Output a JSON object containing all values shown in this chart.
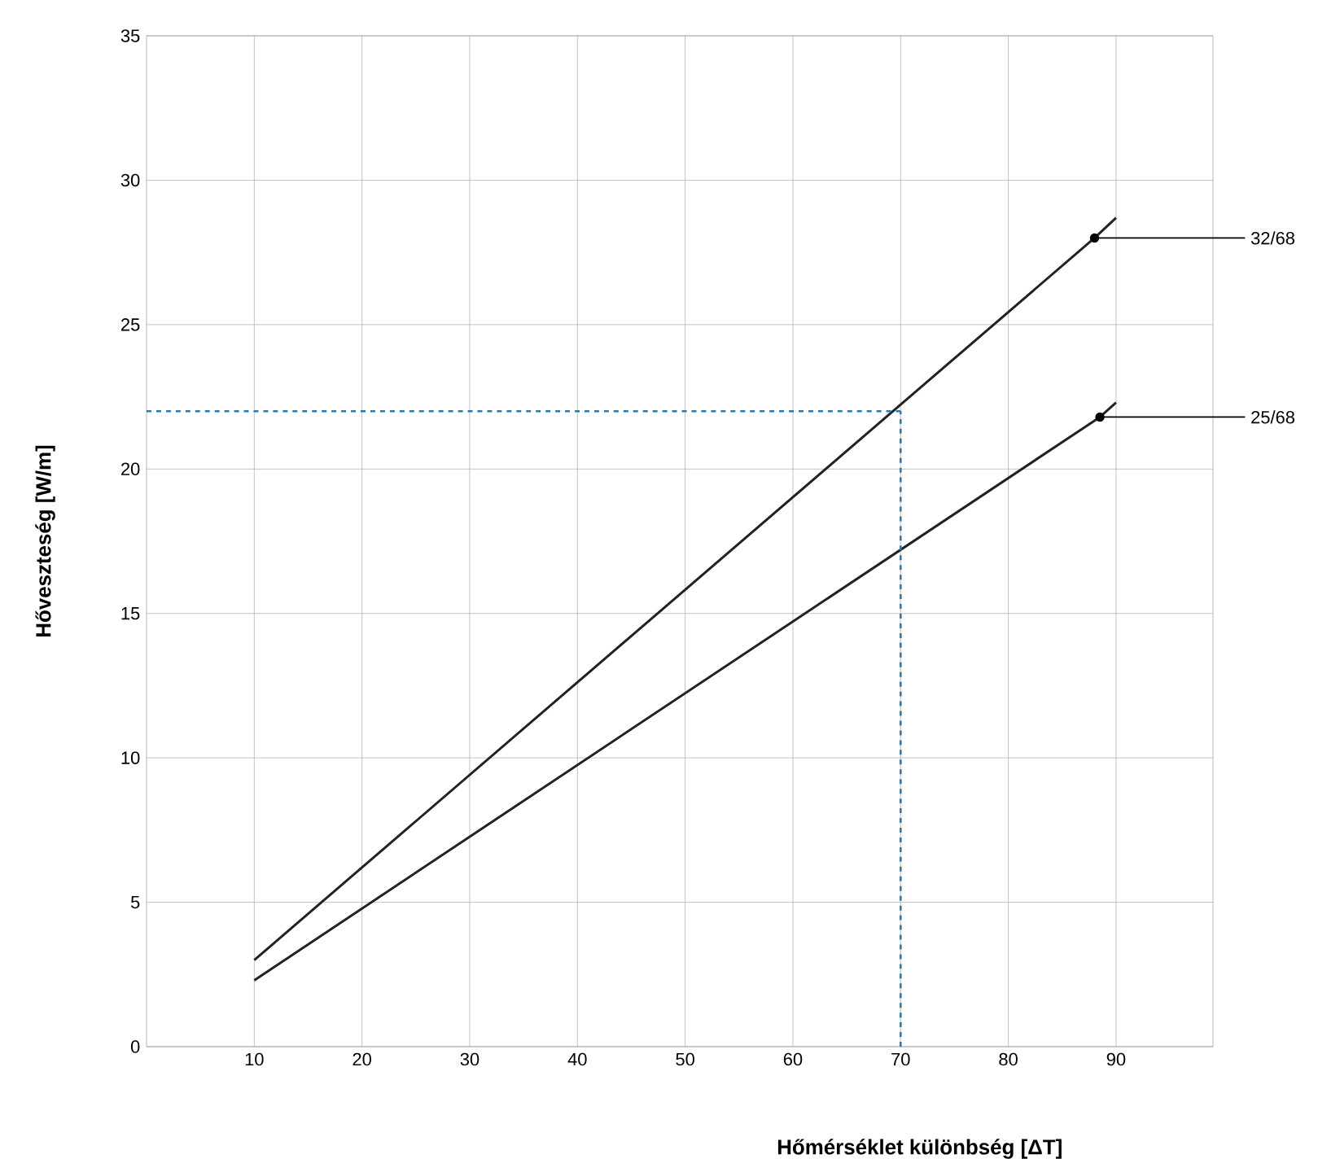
{
  "chart_data": {
    "type": "line",
    "xlabel": "Hőmérséklet különbség [ΔT]",
    "ylabel": "Hőveszteség [W/m]",
    "series": [
      {
        "name": "32/68",
        "color": "#222222",
        "x": [
          10,
          88,
          90
        ],
        "values": [
          3.0,
          28.0,
          28.7
        ]
      },
      {
        "name": "25/68",
        "color": "#222222",
        "x": [
          10,
          88.5,
          90
        ],
        "values": [
          2.3,
          21.8,
          22.3
        ]
      }
    ],
    "xlim": [
      0,
      99
    ],
    "xticks": [
      10,
      20,
      30,
      40,
      50,
      60,
      70,
      80,
      90
    ],
    "ylim": [
      0,
      35
    ],
    "yticks": [
      0,
      5,
      10,
      15,
      20,
      25,
      30,
      35
    ],
    "grid": true,
    "marker": "none",
    "line_style": "solid",
    "ref_lines": [
      {
        "axis": "y",
        "value": 22,
        "color": "#2a7ab0",
        "line_style": "dashed"
      },
      {
        "axis": "x",
        "value": 70,
        "color": "#2a7ab0",
        "line_style": "dashed"
      }
    ]
  }
}
